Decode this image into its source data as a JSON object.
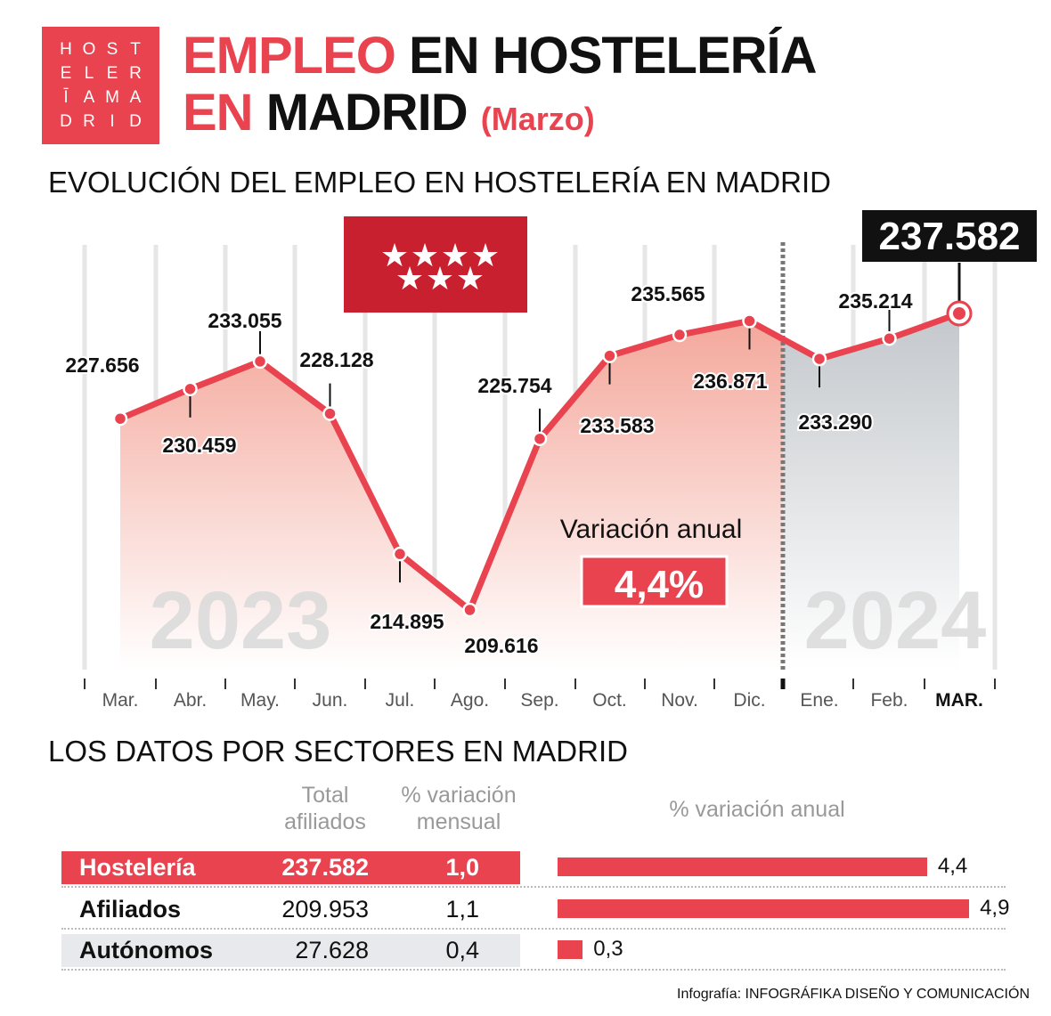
{
  "logo": {
    "letters": [
      "H",
      "O",
      "S",
      "T",
      "E",
      "L",
      "E",
      "R",
      "Ī",
      "A",
      "M",
      "A",
      "D",
      "R",
      "I",
      "D"
    ]
  },
  "title": {
    "part1_red": "EMPLEO",
    "part1_black": " EN HOSTELERÍA",
    "part2_red": "EN",
    "part2_black": " MADRID ",
    "part2_sub": "(Marzo)"
  },
  "chart_heading": "EVOLUCIÓN DEL EMPLEO EN HOSTELERÍA EN MADRID",
  "chart_data": {
    "type": "line",
    "categories": [
      "Mar.",
      "Abr.",
      "May.",
      "Jun.",
      "Jul.",
      "Ago.",
      "Sep.",
      "Oct.",
      "Nov.",
      "Dic.",
      "Ene.",
      "Feb.",
      "MAR."
    ],
    "values": [
      227656,
      230459,
      233055,
      228128,
      214895,
      209616,
      225754,
      233583,
      235565,
      236871,
      233290,
      235214,
      237582
    ],
    "value_labels": [
      "227.656",
      "230.459",
      "233.055",
      "228.128",
      "214.895",
      "209.616",
      "225.754",
      "233.583",
      "235.565",
      "236.871",
      "233.290",
      "235.214",
      "237.582"
    ],
    "year_labels": [
      "2023",
      "2024"
    ],
    "annotation": {
      "label": "Variación anual",
      "value": "4,4%"
    },
    "colors": {
      "line": "#e8434f",
      "fill_2023": "#f4a89c",
      "fill_2024": "#c4c8cc",
      "highlight_box": "#111111"
    },
    "grid": "vertical"
  },
  "sectors": {
    "heading": "LOS DATOS POR SECTORES EN MADRID",
    "col_total": [
      "Total",
      "afiliados"
    ],
    "col_mensual": [
      "% variación",
      "mensual"
    ],
    "col_anual": "% variación anual",
    "rows": [
      {
        "name": "Hostelería",
        "total": "237.582",
        "mensual": "1,0",
        "anual": 4.4,
        "anual_label": "4,4"
      },
      {
        "name": "Afiliados",
        "total": "209.953",
        "mensual": "1,1",
        "anual": 4.9,
        "anual_label": "4,9"
      },
      {
        "name": "Autónomos",
        "total": "27.628",
        "mensual": "0,4",
        "anual": 0.3,
        "anual_label": "0,3"
      }
    ]
  },
  "credit": {
    "prefix": "Infografía: ",
    "name": "INFOGRÁFIKA DISEÑO Y COMUNICACIÓN"
  }
}
